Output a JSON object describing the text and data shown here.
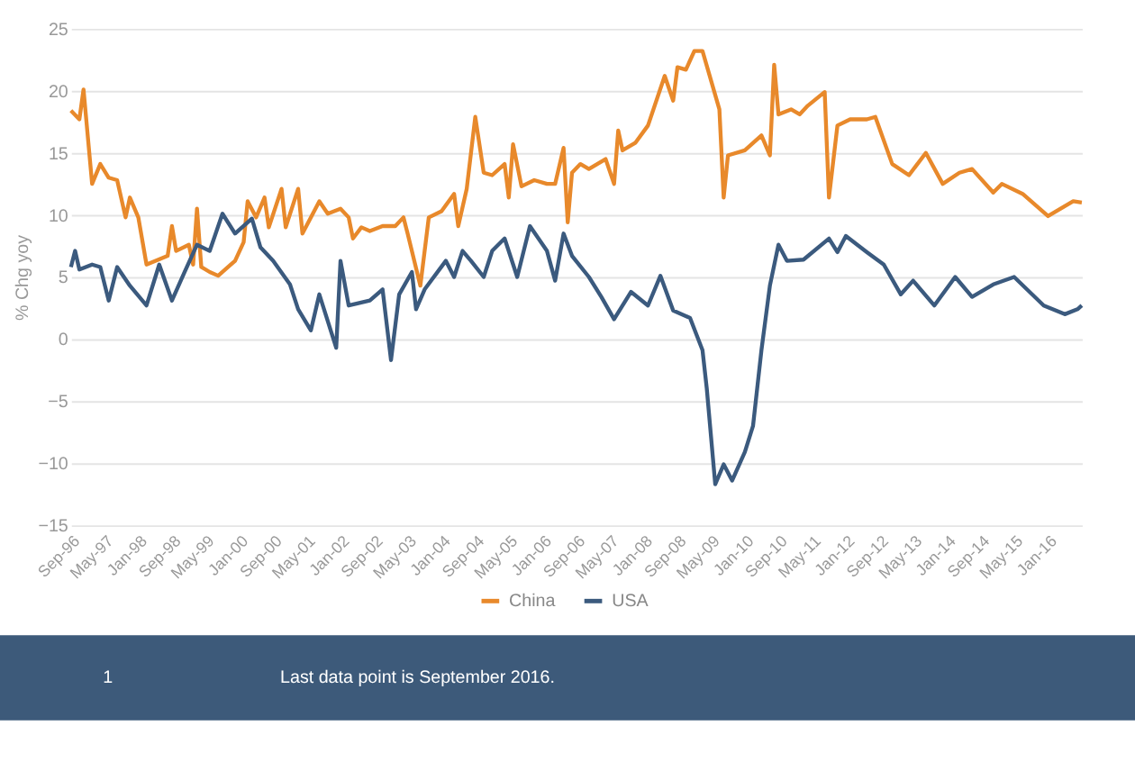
{
  "chart_data": {
    "type": "line",
    "ylabel": "% Chg yoy",
    "x": [
      "1996-09",
      "1996-11",
      "1996-12",
      "1997-02",
      "1997-04",
      "1997-06",
      "1997-08",
      "1997-10",
      "1997-11",
      "1998-01",
      "1998-03",
      "1998-08",
      "1998-09",
      "1998-10",
      "1999-01",
      "1999-02",
      "1999-03",
      "1999-04",
      "1999-06",
      "1999-08",
      "1999-12",
      "2000-02",
      "2000-03",
      "2000-05",
      "2000-07",
      "2000-08",
      "2000-11",
      "2000-12",
      "2001-03",
      "2001-04",
      "2001-08",
      "2001-10",
      "2002-01",
      "2002-03",
      "2002-04",
      "2002-06",
      "2002-08",
      "2002-11",
      "2003-02",
      "2003-04",
      "2003-05",
      "2003-08",
      "2003-10",
      "2004-01",
      "2004-04",
      "2004-05",
      "2004-07",
      "2004-09",
      "2004-11",
      "2005-01",
      "2005-04",
      "2005-05",
      "2005-06",
      "2005-08",
      "2005-11",
      "2006-02",
      "2006-04",
      "2006-06",
      "2006-07",
      "2006-08",
      "2006-10",
      "2006-12",
      "2007-04",
      "2007-06",
      "2007-07",
      "2007-08",
      "2007-11",
      "2008-02",
      "2008-06",
      "2008-08",
      "2008-09",
      "2008-11",
      "2009-01",
      "2009-03",
      "2009-07",
      "2009-08",
      "2009-09",
      "2010-01",
      "2010-05",
      "2010-07",
      "2010-08",
      "2010-09",
      "2010-12",
      "2011-02",
      "2011-04",
      "2011-08",
      "2011-09",
      "2011-11",
      "2012-02",
      "2012-06",
      "2012-08",
      "2012-12",
      "2013-04",
      "2013-08",
      "2013-12",
      "2014-04",
      "2014-07",
      "2014-12",
      "2015-02",
      "2015-07",
      "2016-01",
      "2016-07",
      "2016-09"
    ],
    "series": [
      {
        "name": "China",
        "color": "#e8892b",
        "values": [
          18.4,
          17.7,
          20.1,
          12.5,
          14.1,
          13.0,
          12.8,
          9.8,
          11.4,
          9.8,
          6.0,
          6.7,
          9.1,
          7.1,
          7.6,
          6.0,
          10.5,
          5.8,
          5.4,
          5.1,
          6.3,
          7.8,
          11.1,
          9.8,
          11.4,
          9.0,
          12.1,
          9.0,
          12.1,
          8.5,
          11.1,
          10.1,
          10.5,
          9.8,
          8.1,
          9.0,
          8.7,
          9.1,
          9.1,
          9.8,
          8.5,
          4.3,
          9.8,
          10.3,
          11.7,
          9.1,
          12.1,
          17.9,
          13.4,
          13.2,
          14.1,
          11.4,
          15.7,
          12.3,
          12.8,
          12.5,
          12.5,
          15.4,
          9.4,
          13.4,
          14.1,
          13.7,
          14.5,
          12.5,
          16.8,
          15.2,
          15.8,
          17.2,
          21.2,
          19.2,
          21.9,
          21.7,
          23.2,
          23.2,
          18.5,
          11.4,
          14.8,
          15.2,
          16.4,
          14.8,
          22.1,
          18.1,
          18.5,
          18.1,
          18.8,
          19.9,
          11.4,
          17.2,
          17.7,
          17.7,
          17.9,
          14.1,
          13.2,
          15.0,
          12.5,
          13.4,
          13.7,
          11.8,
          12.5,
          11.7,
          9.9,
          11.1,
          11.0
        ]
      },
      {
        "name": "USA",
        "color": "#3b5a7e",
        "x": [
          "1996-09",
          "1996-10",
          "1996-11",
          "1997-02",
          "1997-04",
          "1997-06",
          "1997-08",
          "1997-11",
          "1998-03",
          "1998-06",
          "1998-09",
          "1998-12",
          "1999-03",
          "1999-06",
          "1999-09",
          "1999-12",
          "2000-04",
          "2000-06",
          "2000-09",
          "2001-01",
          "2001-03",
          "2001-06",
          "2001-08",
          "2001-12",
          "2002-01",
          "2002-03",
          "2002-08",
          "2002-11",
          "2003-01",
          "2003-03",
          "2003-06",
          "2003-07",
          "2003-09",
          "2004-02",
          "2004-04",
          "2004-06",
          "2004-08",
          "2004-11",
          "2005-01",
          "2005-04",
          "2005-07",
          "2005-10",
          "2006-02",
          "2006-04",
          "2006-06",
          "2006-08",
          "2006-12",
          "2007-03",
          "2007-06",
          "2007-10",
          "2008-02",
          "2008-05",
          "2008-08",
          "2008-12",
          "2009-03",
          "2009-04",
          "2009-06",
          "2009-08",
          "2009-10",
          "2010-01",
          "2010-03",
          "2010-05",
          "2010-07",
          "2010-09",
          "2010-11",
          "2011-03",
          "2011-09",
          "2011-11",
          "2012-01",
          "2012-06",
          "2012-10",
          "2013-02",
          "2013-05",
          "2013-10",
          "2014-03",
          "2014-07",
          "2014-12",
          "2015-05",
          "2015-12",
          "2016-05",
          "2016-08",
          "2016-09"
        ],
        "values": [
          5.8,
          7.1,
          5.6,
          6.0,
          5.8,
          3.1,
          5.8,
          4.3,
          2.7,
          6.0,
          3.1,
          5.4,
          7.6,
          7.1,
          10.1,
          8.5,
          9.7,
          7.4,
          6.3,
          4.4,
          2.4,
          0.7,
          3.6,
          -0.7,
          6.3,
          2.7,
          3.1,
          4.0,
          -1.7,
          3.6,
          5.4,
          2.4,
          4.0,
          6.3,
          5.0,
          7.1,
          6.3,
          5.0,
          7.1,
          8.1,
          5.0,
          9.1,
          7.1,
          4.7,
          8.5,
          6.7,
          5.0,
          3.4,
          1.6,
          3.8,
          2.7,
          5.1,
          2.3,
          1.7,
          -0.9,
          -4.0,
          -11.7,
          -10.1,
          -11.4,
          -9.1,
          -7.0,
          -0.9,
          4.3,
          7.6,
          6.3,
          6.4,
          8.1,
          7.0,
          8.3,
          7.0,
          6.0,
          3.6,
          4.7,
          2.7,
          5.0,
          3.4,
          4.4,
          5.0,
          2.7,
          2.0,
          2.4,
          2.7
        ]
      }
    ],
    "xlim": [
      "1996-09",
      "2016-09"
    ],
    "xticks": [
      {
        "value": "1996-09",
        "label": "Sep-96"
      },
      {
        "value": "1997-05",
        "label": "May-97"
      },
      {
        "value": "1998-01",
        "label": "Jan-98"
      },
      {
        "value": "1998-09",
        "label": "Sep-98"
      },
      {
        "value": "1999-05",
        "label": "May-99"
      },
      {
        "value": "2000-01",
        "label": "Jan-00"
      },
      {
        "value": "2000-09",
        "label": "Sep-00"
      },
      {
        "value": "2001-05",
        "label": "May-01"
      },
      {
        "value": "2002-01",
        "label": "Jan-02"
      },
      {
        "value": "2002-09",
        "label": "Sep-02"
      },
      {
        "value": "2003-05",
        "label": "May-03"
      },
      {
        "value": "2004-01",
        "label": "Jan-04"
      },
      {
        "value": "2004-09",
        "label": "Sep-04"
      },
      {
        "value": "2005-05",
        "label": "May-05"
      },
      {
        "value": "2006-01",
        "label": "Jan-06"
      },
      {
        "value": "2006-09",
        "label": "Sep-06"
      },
      {
        "value": "2007-05",
        "label": "May-07"
      },
      {
        "value": "2008-01",
        "label": "Jan-08"
      },
      {
        "value": "2008-09",
        "label": "Sep-08"
      },
      {
        "value": "2009-05",
        "label": "May-09"
      },
      {
        "value": "2010-01",
        "label": "Jan-10"
      },
      {
        "value": "2010-09",
        "label": "Sep-10"
      },
      {
        "value": "2011-05",
        "label": "May-11"
      },
      {
        "value": "2012-01",
        "label": "Jan-12"
      },
      {
        "value": "2012-09",
        "label": "Sep-12"
      },
      {
        "value": "2013-05",
        "label": "May-13"
      },
      {
        "value": "2014-01",
        "label": "Jan-14"
      },
      {
        "value": "2014-09",
        "label": "Sep-14"
      },
      {
        "value": "2015-05",
        "label": "May-15"
      },
      {
        "value": "2016-01",
        "label": "Jan-16"
      }
    ],
    "ylim": [
      -15,
      25
    ],
    "yticks": [
      -15,
      -10,
      -5,
      0,
      5,
      10,
      15,
      20,
      25
    ],
    "grid": "y",
    "legend": "bottom",
    "marker": "none",
    "line_style": "solid",
    "annotations": [
      "1",
      "Last data point is September 2016."
    ]
  }
}
